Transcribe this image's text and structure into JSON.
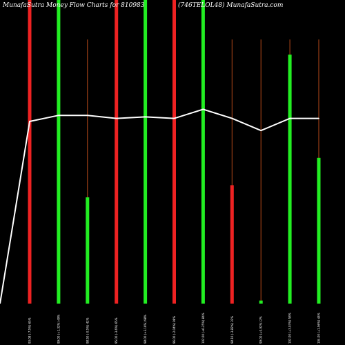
{
  "header": {
    "left_title": "MunafaSutra  Money Flow  Charts for 810983",
    "right_title": "(746TELOL48) MunafaSutra.com"
  },
  "colors": {
    "background": "#000000",
    "up": "#22ee22",
    "down": "#ee2222",
    "wick": "#b84a1a",
    "line": "#ffffff"
  },
  "chart_data": {
    "type": "bar",
    "title": "MunafaSutra  Money Flow  Charts for 810983",
    "subtitle": "(746TELOL48) MunafaSutra.com",
    "categories": [
      "93.08 (-7.5%) 65%",
      "99.00 (+1.32%) 49%",
      "98.50 (-0.5%) 42%",
      "95.00 (-3.6%) 65%",
      "98.00 (+3.16%) 98%",
      "96.00 (-2.04%) 98%",
      "102.00 (+6.25%) 84%",
      "98.10 (-3.82%) 33%",
      "99.00 (+0.92%) 2%",
      "102.00 (+3.03%) 58%",
      "104.00 (+1.96%) 44%"
    ],
    "bars": [
      {
        "value": 100,
        "color": "down"
      },
      {
        "value": 100,
        "color": "up"
      },
      {
        "value": 35,
        "color": "up"
      },
      {
        "value": 100,
        "color": "down"
      },
      {
        "value": 100,
        "color": "up"
      },
      {
        "value": 100,
        "color": "down"
      },
      {
        "value": 100,
        "color": "up"
      },
      {
        "value": 39,
        "color": "down"
      },
      {
        "value": 1,
        "color": "up"
      },
      {
        "value": 82,
        "color": "up"
      },
      {
        "value": 48,
        "color": "up"
      }
    ],
    "wicks": [
      100,
      100,
      87,
      100,
      100,
      100,
      100,
      87,
      87,
      87,
      87
    ],
    "line": [
      60,
      62,
      62,
      61,
      61.5,
      61,
      64,
      61,
      57,
      61,
      61
    ],
    "line_start": 0,
    "ylim": [
      0,
      100
    ],
    "line_ylim": [
      0,
      100
    ]
  }
}
